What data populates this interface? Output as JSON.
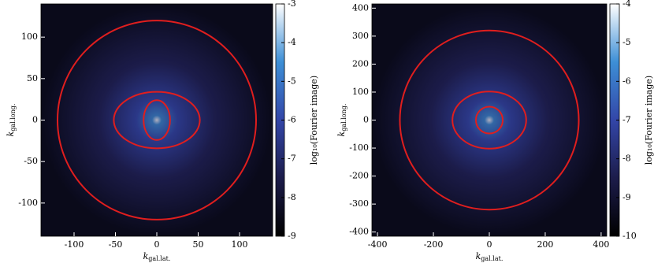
{
  "chart_data": [
    {
      "type": "image",
      "xlabel": {
        "main": "k",
        "sub": "gal.lat."
      },
      "ylabel": {
        "main": "k",
        "sub": "gal.long."
      },
      "xlim": [
        -140,
        140
      ],
      "ylim": [
        -140,
        140
      ],
      "xticks": [
        -100,
        -50,
        0,
        50,
        100
      ],
      "yticks": [
        -100,
        -50,
        0,
        50,
        100
      ],
      "ellipses": [
        {
          "rx": 120,
          "ry": 120
        },
        {
          "rx": 52,
          "ry": 34
        },
        {
          "rx": 16,
          "ry": 24
        }
      ],
      "ellipse_color": "#e01e1e",
      "colormap": [
        "#000000",
        "#1c1c4a",
        "#3346a8",
        "#3d8fd6",
        "#ffffff"
      ],
      "clim": [
        -9,
        -3
      ],
      "cticks": [
        -9,
        -8,
        -7,
        -6,
        -5,
        -4,
        -3
      ],
      "clabel": "log₁₀(Fourier image)"
    },
    {
      "type": "image",
      "xlabel": {
        "main": "k",
        "sub": "gal.lat."
      },
      "ylabel": {
        "main": "k",
        "sub": "gal.long."
      },
      "xlim": [
        -420,
        420
      ],
      "ylim": [
        -415,
        415
      ],
      "xticks": [
        -400,
        -200,
        0,
        200,
        400
      ],
      "yticks": [
        -400,
        -300,
        -200,
        -100,
        0,
        100,
        200,
        300,
        400
      ],
      "ellipses": [
        {
          "rx": 320,
          "ry": 320
        },
        {
          "rx": 132,
          "ry": 102
        },
        {
          "rx": 48,
          "ry": 48
        }
      ],
      "ellipse_color": "#e01e1e",
      "colormap": [
        "#000000",
        "#1c1c4a",
        "#3346a8",
        "#3d8fd6",
        "#ffffff"
      ],
      "clim": [
        -10,
        -4
      ],
      "cticks": [
        -10,
        -9,
        -8,
        -7,
        -6,
        -5,
        -4
      ],
      "clabel": "log₁₀(Fourier image)"
    }
  ]
}
